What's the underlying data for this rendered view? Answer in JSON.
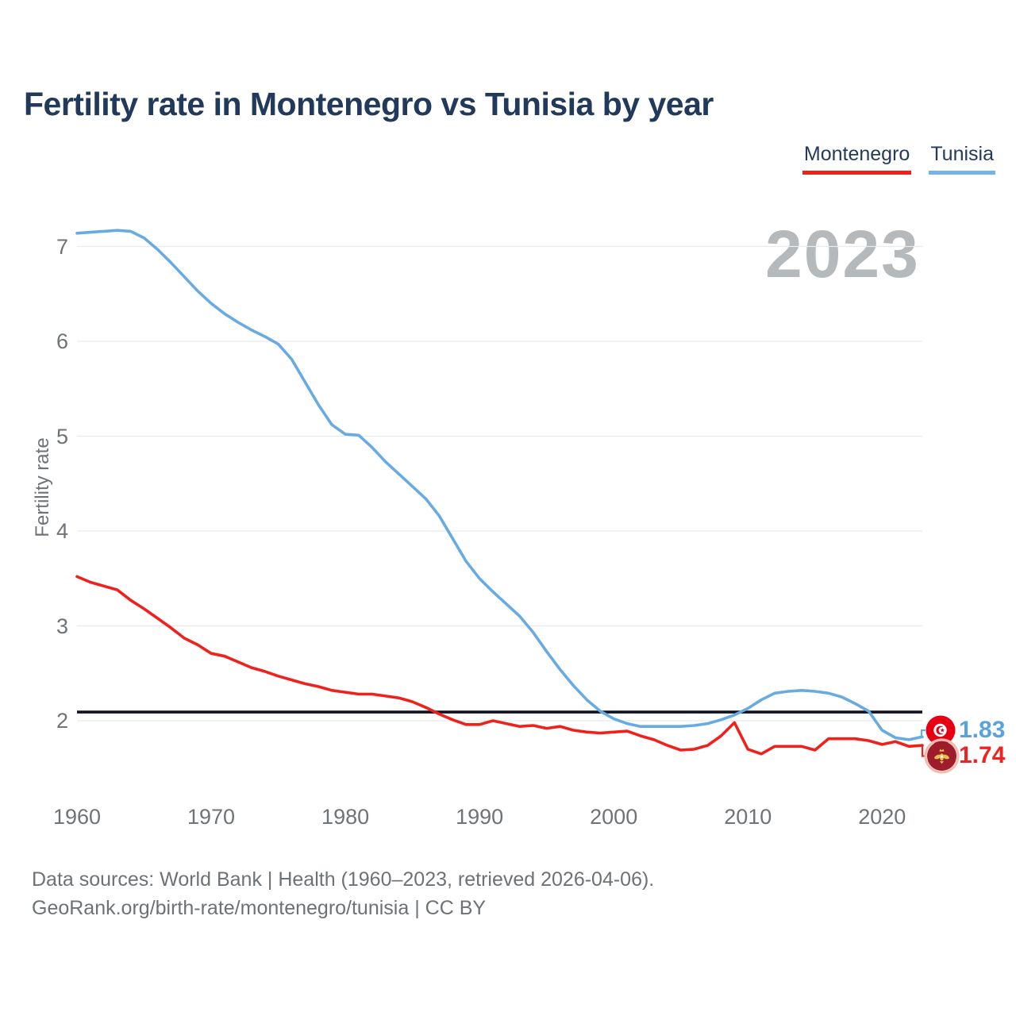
{
  "title": "Fertility rate in Montenegro vs Tunisia by year",
  "watermark": "2023",
  "legend": [
    {
      "label": "Montenegro",
      "color": "#f0211c"
    },
    {
      "label": "Tunisia",
      "color": "#74b4e8"
    }
  ],
  "y_axis": {
    "label": "Fertility rate",
    "ticks": [
      7,
      6,
      5,
      4,
      3,
      2
    ]
  },
  "x_axis": {
    "ticks": [
      1960,
      1970,
      1980,
      1990,
      2000,
      2010,
      2020
    ]
  },
  "reference_line": {
    "value": 2.1,
    "color": "#10131f"
  },
  "end_labels": [
    {
      "series": "Tunisia",
      "value": "1.83",
      "color": "#58a3dd",
      "flag": "tunisia-flag"
    },
    {
      "series": "Montenegro",
      "value": "1.74",
      "color": "#ef2322",
      "flag": "montenegro-flag"
    }
  ],
  "footer": {
    "line1": "Data sources: World Bank | Health (1960–2023, retrieved 2026-04-06).",
    "line2": "GeoRank.org/birth-rate/montenegro/tunisia | CC BY"
  },
  "chart_data": {
    "type": "line",
    "title": "Fertility rate in Montenegro vs Tunisia by year",
    "xlabel": "",
    "ylabel": "Fertility rate",
    "ylim": [
      1.4,
      7.4
    ],
    "xlim": [
      1960,
      2023
    ],
    "grid": "horizontal",
    "legend_position": "top-right",
    "x": [
      1960,
      1961,
      1962,
      1963,
      1964,
      1965,
      1966,
      1967,
      1968,
      1969,
      1970,
      1971,
      1972,
      1973,
      1974,
      1975,
      1976,
      1977,
      1978,
      1979,
      1980,
      1981,
      1982,
      1983,
      1984,
      1985,
      1986,
      1987,
      1988,
      1989,
      1990,
      1991,
      1992,
      1993,
      1994,
      1995,
      1996,
      1997,
      1998,
      1999,
      2000,
      2001,
      2002,
      2003,
      2004,
      2005,
      2006,
      2007,
      2008,
      2009,
      2010,
      2011,
      2012,
      2013,
      2014,
      2015,
      2016,
      2017,
      2018,
      2019,
      2020,
      2021,
      2022,
      2023
    ],
    "series": [
      {
        "name": "Montenegro",
        "color": "#f0211c",
        "values": [
          3.52,
          3.46,
          3.42,
          3.38,
          3.27,
          3.18,
          3.08,
          2.98,
          2.87,
          2.8,
          2.71,
          2.68,
          2.62,
          2.56,
          2.52,
          2.47,
          2.43,
          2.39,
          2.36,
          2.32,
          2.3,
          2.28,
          2.28,
          2.26,
          2.24,
          2.2,
          2.14,
          2.07,
          2.01,
          1.96,
          1.96,
          2.0,
          1.97,
          1.94,
          1.95,
          1.92,
          1.94,
          1.9,
          1.88,
          1.87,
          1.88,
          1.89,
          1.84,
          1.8,
          1.74,
          1.69,
          1.7,
          1.74,
          1.84,
          1.98,
          1.7,
          1.65,
          1.73,
          1.73,
          1.73,
          1.69,
          1.81,
          1.81,
          1.81,
          1.79,
          1.75,
          1.78,
          1.73,
          1.74
        ]
      },
      {
        "name": "Tunisia",
        "color": "#68abe2",
        "values": [
          7.14,
          7.15,
          7.16,
          7.17,
          7.16,
          7.09,
          6.97,
          6.83,
          6.68,
          6.53,
          6.4,
          6.29,
          6.2,
          6.12,
          6.05,
          5.97,
          5.81,
          5.57,
          5.33,
          5.12,
          5.02,
          5.01,
          4.88,
          4.73,
          4.6,
          4.47,
          4.34,
          4.16,
          3.92,
          3.68,
          3.5,
          3.36,
          3.23,
          3.1,
          2.93,
          2.73,
          2.54,
          2.37,
          2.22,
          2.1,
          2.02,
          1.97,
          1.94,
          1.94,
          1.94,
          1.94,
          1.95,
          1.97,
          2.01,
          2.06,
          2.13,
          2.22,
          2.29,
          2.31,
          2.32,
          2.31,
          2.29,
          2.25,
          2.18,
          2.1,
          1.9,
          1.82,
          1.8,
          1.83
        ]
      }
    ],
    "annotations": {
      "black_reference_line_at": 2.1,
      "year_watermark": "2023",
      "end_values": {
        "Tunisia": 1.83,
        "Montenegro": 1.74
      }
    }
  }
}
